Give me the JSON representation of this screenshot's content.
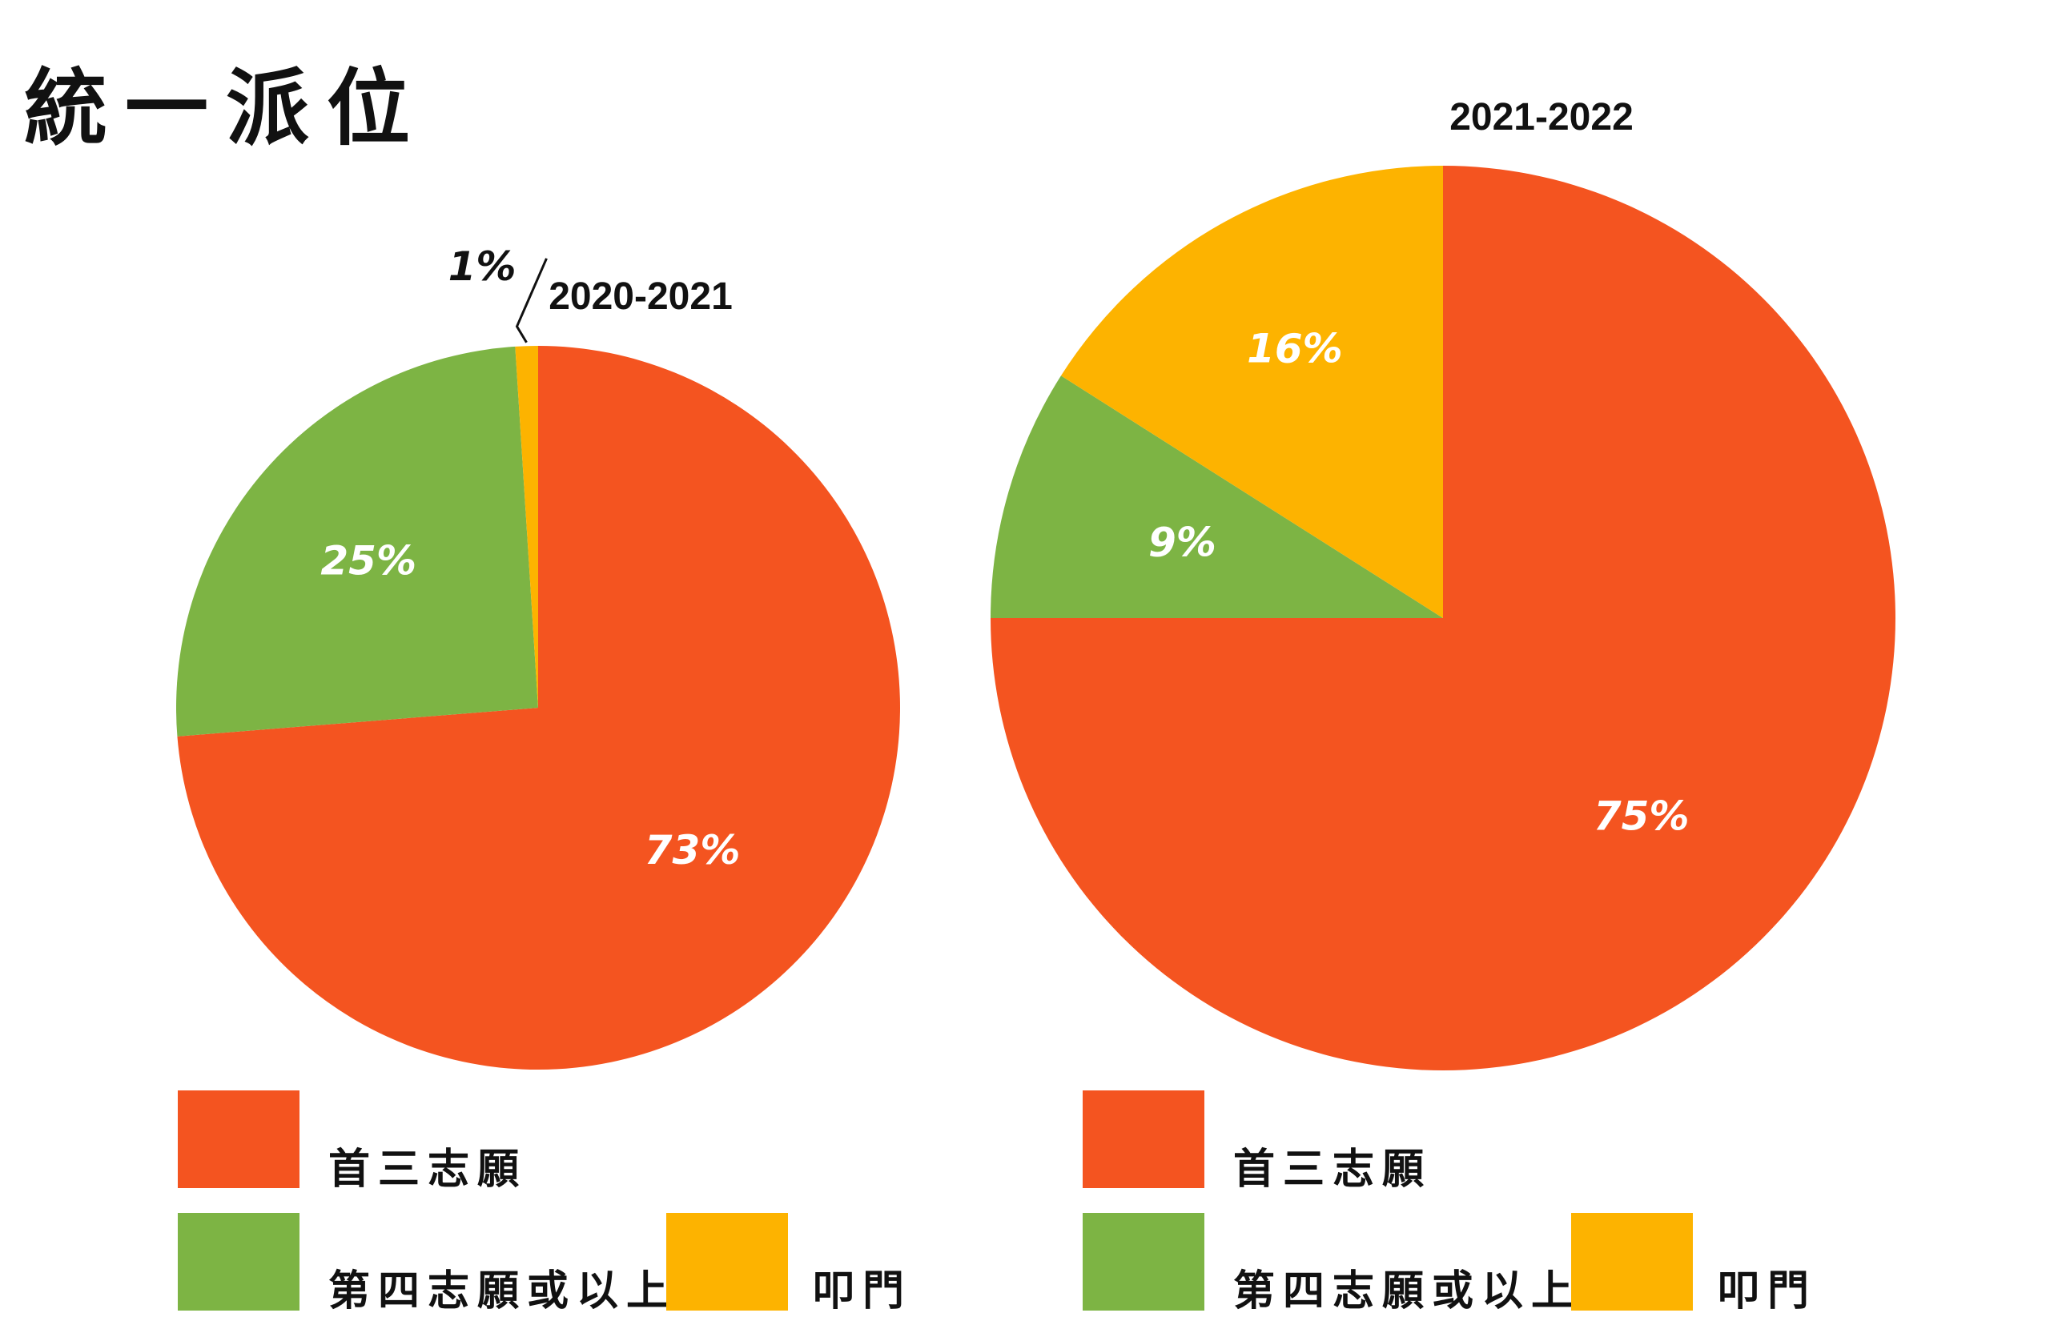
{
  "title": "統一派位",
  "colors": {
    "first_three": "#f45420",
    "fourth_or_above": "#7db444",
    "knock_door": "#fdb300"
  },
  "legend": {
    "first_three": "首三志願",
    "fourth_or_above": "第四志願或以上",
    "knock_door": "叩門"
  },
  "chart_data": [
    {
      "type": "pie",
      "title": "2020-2021",
      "labels": [
        "首三志願",
        "第四志願或以上",
        "叩門"
      ],
      "values": [
        73,
        25,
        1
      ],
      "value_labels": [
        "73%",
        "25%",
        "1%"
      ],
      "colors": [
        "#f45420",
        "#7db444",
        "#fdb300"
      ],
      "legend_placement": "bottom"
    },
    {
      "type": "pie",
      "title": "2021-2022",
      "labels": [
        "首三志願",
        "第四志願或以上",
        "叩門"
      ],
      "values": [
        75,
        9,
        16
      ],
      "value_labels": [
        "75%",
        "9%",
        "16%"
      ],
      "colors": [
        "#f45420",
        "#7db444",
        "#fdb300"
      ],
      "legend_placement": "bottom"
    }
  ]
}
